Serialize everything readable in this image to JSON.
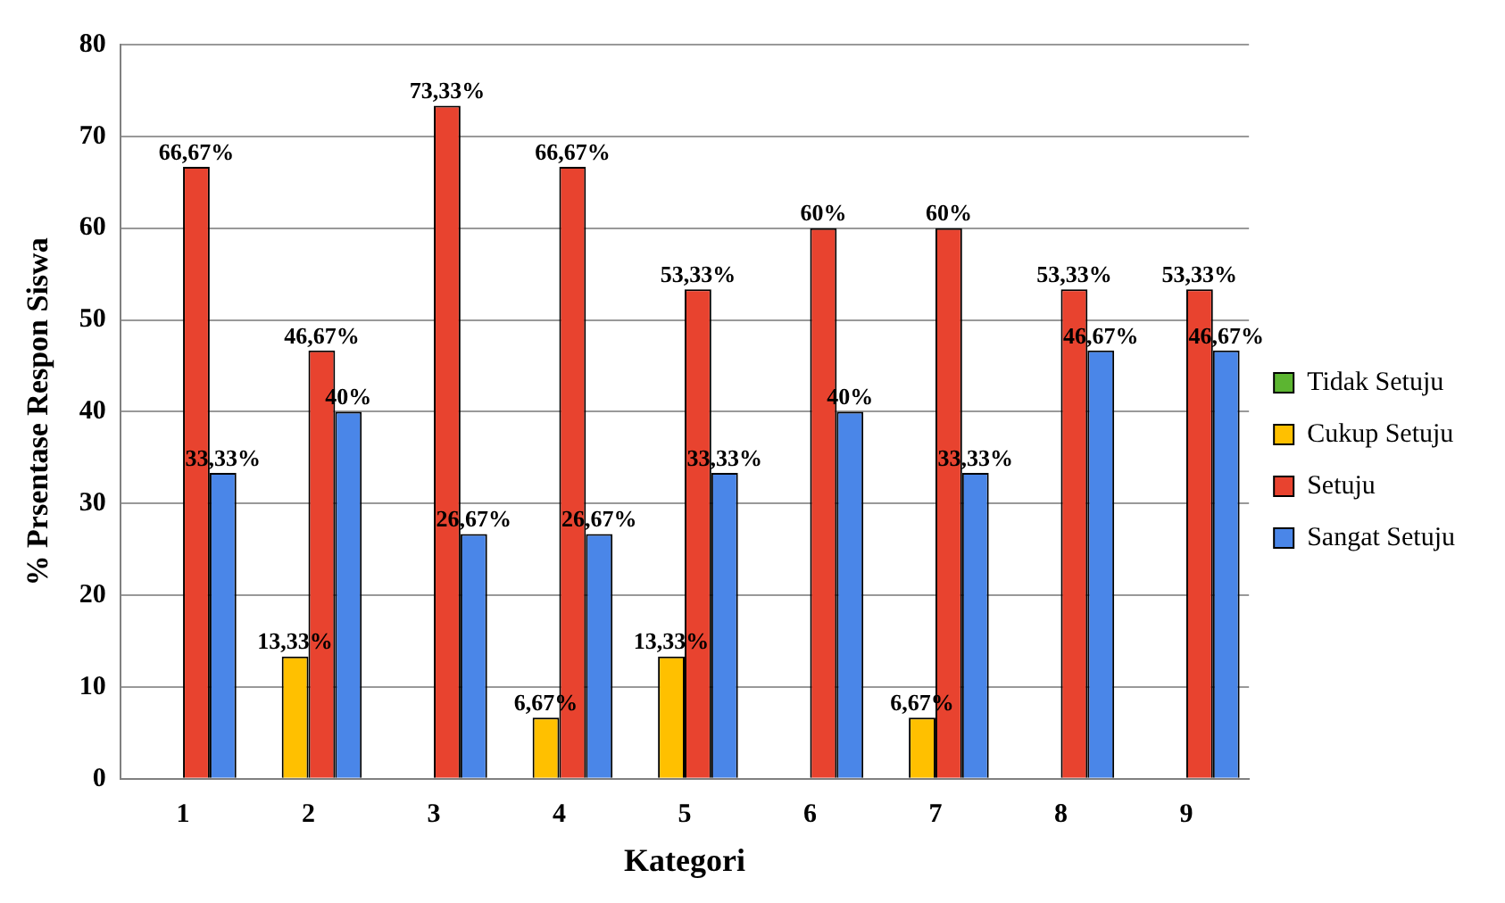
{
  "chart_data": {
    "type": "bar",
    "xlabel": "Kategori",
    "ylabel": "% Prsentase Respon Siswa",
    "categories": [
      "1",
      "2",
      "3",
      "4",
      "5",
      "6",
      "7",
      "8",
      "9"
    ],
    "series": [
      {
        "name": "Tidak Setuju",
        "color": "#5cb531",
        "values": [
          0,
          0,
          0,
          0,
          0,
          0,
          0,
          0,
          0
        ],
        "value_labels": [
          null,
          null,
          null,
          null,
          null,
          null,
          null,
          null,
          null
        ]
      },
      {
        "name": "Cukup Setuju",
        "color": "#ffc000",
        "values": [
          0,
          13.33,
          0,
          6.67,
          13.33,
          0,
          6.67,
          0,
          0
        ],
        "value_labels": [
          null,
          "13,33%",
          null,
          "6,67%",
          "13,33%",
          null,
          "6,67%",
          null,
          null
        ]
      },
      {
        "name": "Setuju",
        "color": "#e8432f",
        "values": [
          66.67,
          46.67,
          73.33,
          66.67,
          53.33,
          60,
          60,
          53.33,
          53.33
        ],
        "value_labels": [
          "66,67%",
          "46,67%",
          "73,33%",
          "66,67%",
          "53,33%",
          "60%",
          "60%",
          "53,33%",
          "53,33%"
        ]
      },
      {
        "name": "Sangat Setuju",
        "color": "#4a86e8",
        "values": [
          33.33,
          40,
          26.67,
          26.67,
          33.33,
          40,
          33.33,
          46.67,
          46.67
        ],
        "value_labels": [
          "33,33%",
          "40%",
          "26,67%",
          "26,67%",
          "33,33%",
          "40%",
          "33,33%",
          "46,67%",
          "46,67%"
        ]
      }
    ],
    "ylim": [
      0,
      80
    ],
    "yticks": [
      0,
      10,
      20,
      30,
      40,
      50,
      60,
      70,
      80
    ],
    "grid": "y",
    "legend": "right"
  }
}
